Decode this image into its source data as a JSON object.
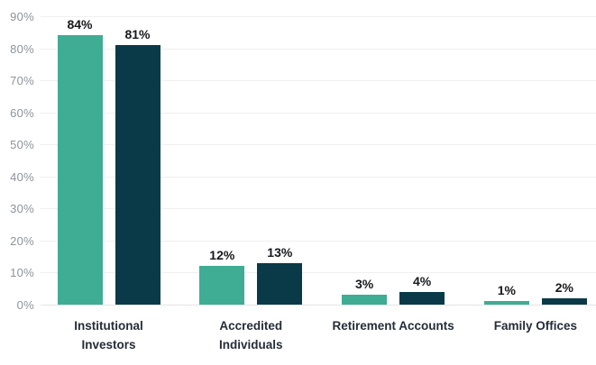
{
  "chart_data": {
    "type": "bar",
    "title": "",
    "subtitle": "",
    "xlabel": "",
    "ylabel": "",
    "categories": [
      "Institutional Investors",
      "Accredited Individuals",
      "Retirement Accounts",
      "Family Offices"
    ],
    "series": [
      {
        "name": "teal-series",
        "color": "#3FAC94",
        "values": [
          84,
          12,
          3,
          1
        ],
        "value_labels": [
          "84%",
          "12%",
          "3%",
          "1%"
        ]
      },
      {
        "name": "navy-series",
        "color": "#0A3A47",
        "values": [
          81,
          13,
          4,
          2
        ],
        "value_labels": [
          "81%",
          "13%",
          "4%",
          "2%"
        ]
      }
    ],
    "ylim": [
      0,
      90
    ],
    "ytick_step": 10,
    "ytick_labels": [
      "0%",
      "10%",
      "20%",
      "30%",
      "40%",
      "50%",
      "60%",
      "70%",
      "80%",
      "90%"
    ],
    "grid": "horizontal",
    "legend": "none",
    "colors": {
      "background": "#FFFFFF",
      "gridline": "#EFEFEF",
      "baseline": "#E3E3E3",
      "tick_label": "#8E939B",
      "value_label": "#17191C",
      "category_label": "#242D39"
    }
  }
}
